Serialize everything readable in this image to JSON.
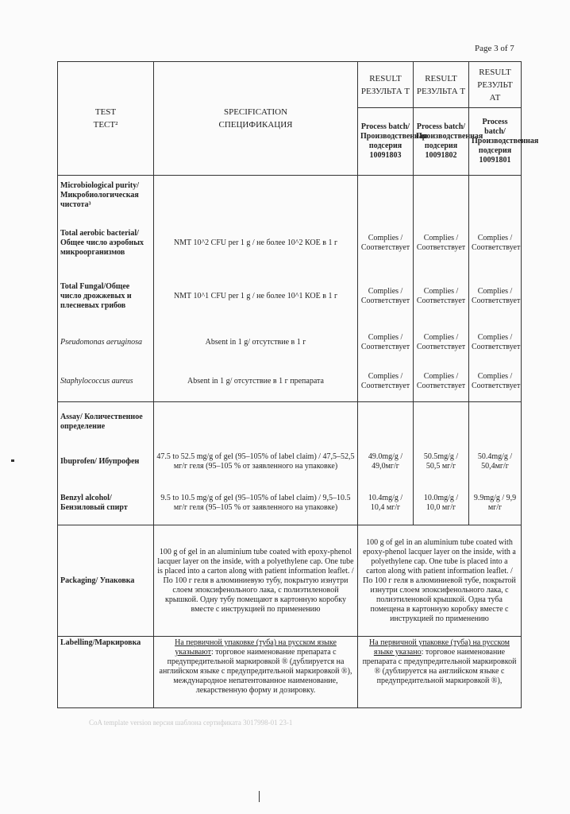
{
  "page_number": "Page 3 of 7",
  "header": {
    "test": "TEST",
    "test_ru": "ТЕСТ²",
    "spec": "SPECIFICATION",
    "spec_ru": "СПЕЦИФИКАЦИЯ",
    "results": [
      {
        "label": "RESULT",
        "label_ru": "РЕЗУЛЬТА Т",
        "batch": "Process batch/ Производственная подсерия 10091803"
      },
      {
        "label": "RESULT",
        "label_ru": "РЕЗУЛЬТА Т",
        "batch": "Process batch/ Производственная подсерия 10091802"
      },
      {
        "label": "RESULT",
        "label_ru": "РЕЗУЛЬТ АТ",
        "batch": "Process batch/ Производственная подсерия 10091801"
      }
    ]
  },
  "micro": {
    "title": "Microbiological purity/ Микробиологическая чистота³",
    "rows": [
      {
        "test": "Total aerobic bacterial/ Общее число аэробных микроорганизмов",
        "spec": "NMT 10^2 CFU per 1 g / не более 10^2 КОЕ в 1 г",
        "r1": "Complies / Соответствует",
        "r2": "Complies / Соответствует",
        "r3": "Complies / Соответствует"
      },
      {
        "test": "Total Fungal/Общее число дрожжевых и плесневых грибов",
        "spec": "NMT 10^1 CFU per 1 g / не более 10^1 КОЕ в 1 г",
        "r1": "Complies / Соответствует",
        "r2": "Complies / Соответствует",
        "r3": "Complies / Соответствует"
      },
      {
        "test": "Pseudomonas aeruginosa",
        "spec": "Absent in 1 g/ отсутствие в 1 г",
        "r1": "Complies / Соответствует",
        "r2": "Complies / Соответствует",
        "r3": "Complies / Соответствует"
      },
      {
        "test": "Staphylococcus aureus",
        "spec": "Absent in 1 g/ отсутствие в 1 г препарата",
        "r1": "Complies / Соответствует",
        "r2": "Complies / Соответствует",
        "r3": "Complies / Соответствует"
      }
    ]
  },
  "assay": {
    "title": "Assay/ Количественное определение",
    "rows": [
      {
        "test": "Ibuprofen/ Ибупрофен",
        "spec": "47.5 to 52.5 mg/g of gel (95–105% of label claim) / 47,5–52,5 мг/г геля (95–105 % от заявленного на упаковке)",
        "r1": "49.0mg/g / 49,0мг/г",
        "r2": "50.5mg/g / 50,5 мг/г",
        "r3": "50.4mg/g / 50,4мг/г"
      },
      {
        "test": "Benzyl alcohol/ Бензиловый спирт",
        "spec": "9.5 to 10.5 mg/g of gel (95–105% of label claim) / 9,5–10.5 мг/г геля (95–105 % от заявленного на упаковке)",
        "r1": "10.4mg/g / 10,4 мг/г",
        "r2": "10.0mg/g / 10,0 мг/г",
        "r3": "9.9mg/g / 9,9 мг/г"
      }
    ]
  },
  "packaging": {
    "test": "Packaging/ Упаковка",
    "spec": "100 g of gel in an aluminium tube coated with epoxy-phenol lacquer layer on the inside, with a polyethylene cap. One tube is placed into a carton along with patient information leaflet. / По 100 г геля в алюминиевую тубу, покрытую изнутри слоем эпоксифенольного лака, с полиэтиленовой крышкой. Одну тубу помещают в картонную коробку вместе с инструкцией по применению",
    "result": "100 g of gel in an aluminium tube coated with epoxy-phenol lacquer layer on the inside, with a polyethylene cap. One tube is placed into a carton along with patient information leaflet. / По 100 г геля в алюминиевой тубе, покрытой изнутри слоем эпоксифенольного лака, с полиэтиленовой крышкой. Одна туба помещена в картонную коробку вместе с инструкцией по применению"
  },
  "labelling": {
    "test": "Labelling/Маркировка",
    "spec_u": "На первичной упаковке (туба) на русском языке указывают",
    "spec": ": торговое наименование препарата с предупредительной маркировкой ® (дублируется на английском языке с предупредительной маркировкой ®), международное непатентованное наименование, лекарственную форму и дозировку.",
    "result_u": "На первичной упаковке (туба) на русском языке указано",
    "result": ": торговое наименование препарата с предупредительной маркировкой ® (дублируется на английском языке с предупредительной маркировкой ®),"
  },
  "footer": "CoA template version версия шаблона сертификата 3017998-01 23-1"
}
